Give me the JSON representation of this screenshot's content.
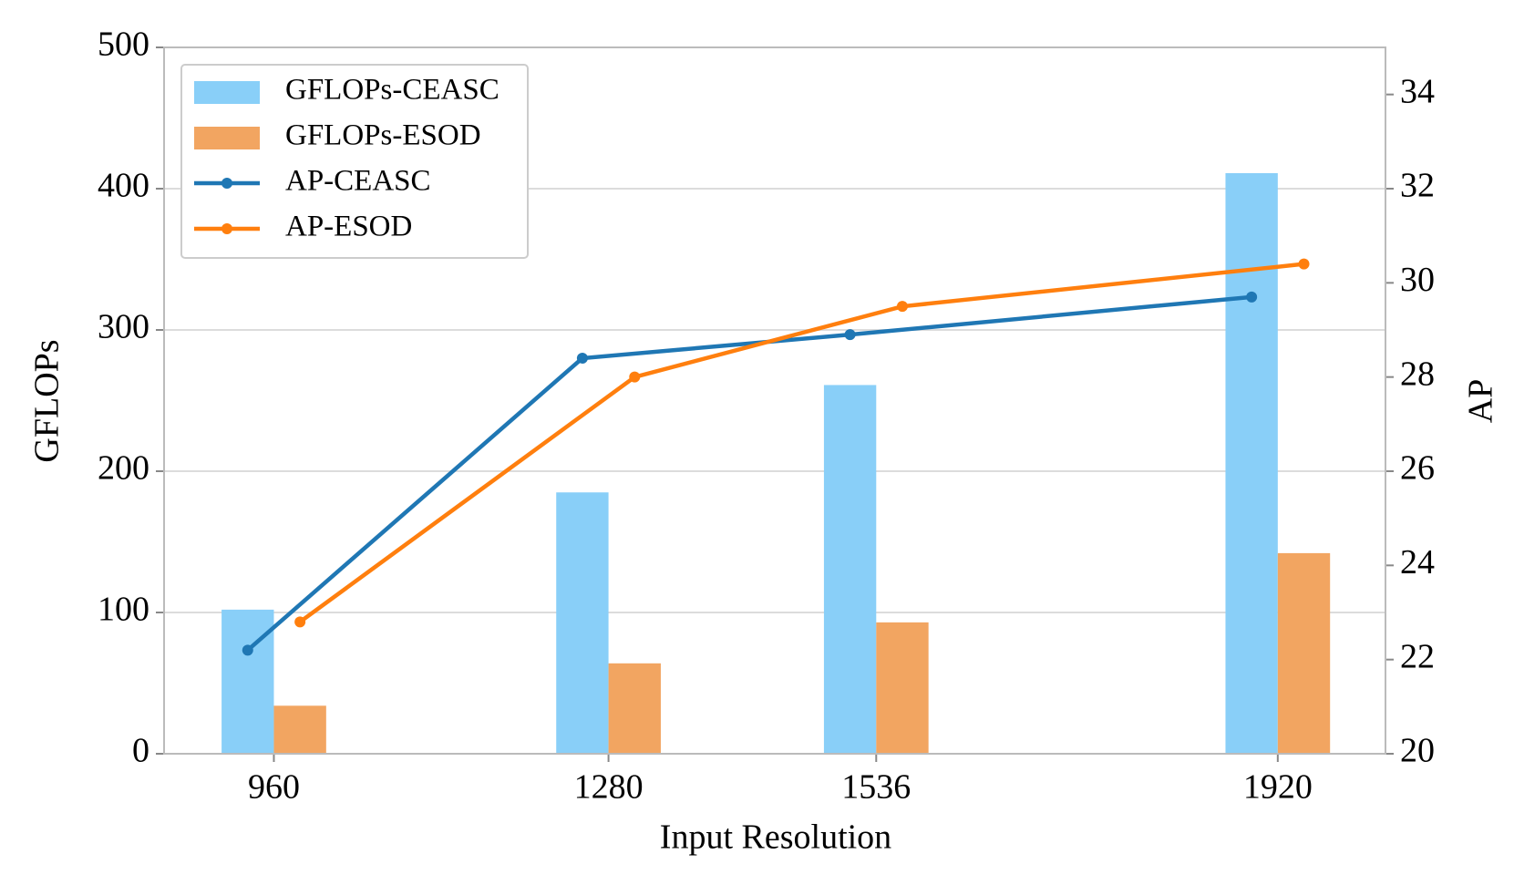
{
  "chart_data": {
    "type": "bar",
    "xlabel": "Input Resolution",
    "ylabel": "GFLOPs",
    "y2label": "AP",
    "x": [
      960,
      1280,
      1536,
      1920
    ],
    "xlim": [
      855,
      2023
    ],
    "xticks": [
      960,
      1280,
      1536,
      1920
    ],
    "ylim": [
      0,
      500
    ],
    "yticks": [
      0,
      100,
      200,
      300,
      400,
      500
    ],
    "y2lim": [
      20,
      35
    ],
    "y2ticks": [
      20,
      22,
      24,
      26,
      28,
      30,
      32,
      34
    ],
    "grid": true,
    "legend": "upper left",
    "series": [
      {
        "name": "GFLOPs-CEASC",
        "type": "bar",
        "color": "#89cff8",
        "values": [
          102,
          185,
          261,
          411
        ]
      },
      {
        "name": "GFLOPs-ESOD",
        "type": "bar",
        "color": "#f2a561",
        "values": [
          34,
          64,
          93,
          142
        ]
      },
      {
        "name": "AP-CEASC",
        "type": "line",
        "axis": "y2",
        "color": "#1f77b4",
        "values": [
          22.2,
          28.4,
          28.9,
          29.7
        ]
      },
      {
        "name": "AP-ESOD",
        "type": "line",
        "axis": "y2",
        "color": "#ff7f0e",
        "values": [
          22.8,
          28.0,
          29.5,
          30.4
        ]
      }
    ]
  }
}
